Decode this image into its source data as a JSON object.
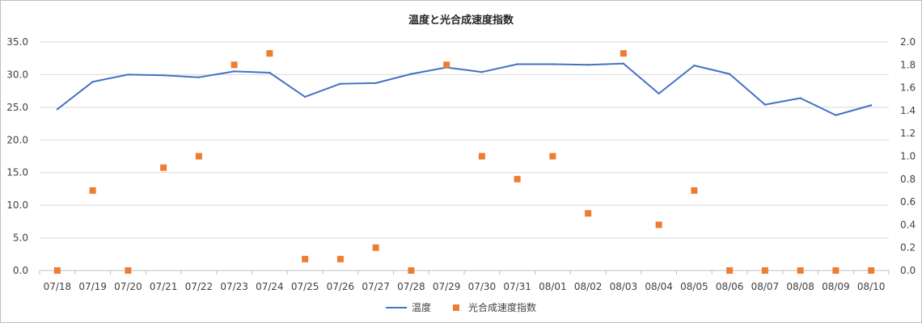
{
  "chart_data": {
    "type": "line",
    "title": "温度と光合成速度指数",
    "categories": [
      "07/18",
      "07/19",
      "07/20",
      "07/21",
      "07/22",
      "07/23",
      "07/24",
      "07/25",
      "07/26",
      "07/27",
      "07/28",
      "07/29",
      "07/30",
      "07/31",
      "08/01",
      "08/02",
      "08/03",
      "08/04",
      "08/05",
      "08/06",
      "08/07",
      "08/08",
      "08/09",
      "08/10"
    ],
    "series": [
      {
        "name": "温度",
        "type": "line",
        "axis": "left",
        "color": "#4472C4",
        "values": [
          24.7,
          28.9,
          30.0,
          29.9,
          29.6,
          30.5,
          30.3,
          26.6,
          28.6,
          28.7,
          30.1,
          31.1,
          30.4,
          31.6,
          31.6,
          31.5,
          31.7,
          27.1,
          31.4,
          30.1,
          25.4,
          26.4,
          23.8,
          25.3
        ]
      },
      {
        "name": "光合成速度指数",
        "type": "scatter",
        "axis": "right",
        "color": "#ED7D31",
        "values": [
          0.0,
          0.7,
          0.0,
          0.9,
          1.0,
          1.8,
          1.9,
          0.1,
          0.1,
          0.2,
          0.0,
          1.8,
          1.0,
          0.8,
          1.0,
          0.5,
          1.9,
          0.4,
          0.7,
          0.0,
          0.0,
          0.0,
          0.0,
          0.0
        ]
      }
    ],
    "y_left": {
      "min": 0,
      "max": 35,
      "step": 5,
      "ticks": [
        "0.0",
        "5.0",
        "10.0",
        "15.0",
        "20.0",
        "25.0",
        "30.0",
        "35.0"
      ]
    },
    "y_right": {
      "min": 0,
      "max": 2,
      "step": 0.2,
      "ticks": [
        "0.0",
        "0.2",
        "0.4",
        "0.6",
        "0.8",
        "1.0",
        "1.2",
        "1.4",
        "1.6",
        "1.8",
        "2.0"
      ]
    },
    "grid": true,
    "legend_position": "bottom"
  }
}
